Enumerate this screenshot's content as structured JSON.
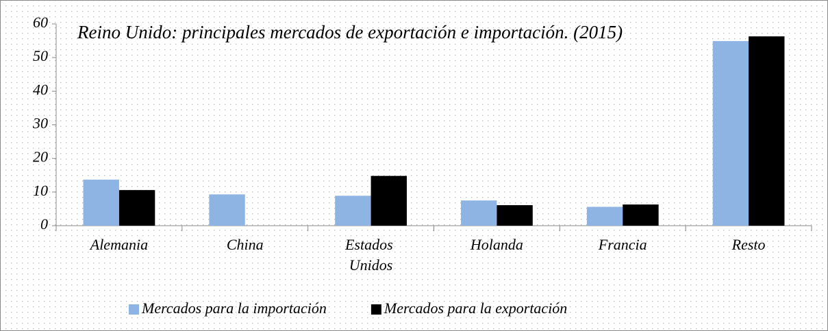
{
  "chart_data": {
    "type": "bar",
    "title": "Reino Unido: principales mercados de exportación e importación. (2015)",
    "categories": [
      "Alemania",
      "China",
      "Estados Unidos",
      "Holanda",
      "Francia",
      "Resto"
    ],
    "series": [
      {
        "name": "Mercados para la importación",
        "color": "#8eb4e3",
        "values": [
          13.7,
          9.3,
          8.9,
          7.5,
          5.6,
          54.9
        ]
      },
      {
        "name": "Mercados para la exportación",
        "color": "#000000",
        "values": [
          10.6,
          null,
          14.8,
          6.1,
          6.3,
          56.3
        ]
      }
    ],
    "ylim": [
      0,
      60
    ],
    "yticks": [
      0,
      10,
      20,
      30,
      40,
      50,
      60
    ],
    "legend": "bottom"
  }
}
